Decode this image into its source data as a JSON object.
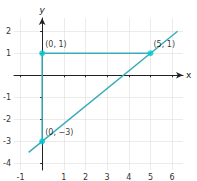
{
  "chart_data": {
    "type": "line",
    "xlabel": "x",
    "ylabel": "y",
    "xlim": [
      -1.3,
      6.5
    ],
    "ylim": [
      -4.3,
      2.6
    ],
    "xticks": [
      -1,
      {
        "value": 0,
        "label": ""
      },
      1,
      2,
      3,
      4,
      5,
      6
    ],
    "yticks": [
      -4,
      -3,
      -2,
      -1,
      {
        "value": 0,
        "label": ""
      },
      1,
      2
    ],
    "grid": true,
    "series": [
      {
        "type": "line",
        "color": "#3aacb8",
        "x": [
          -0.625,
          6.25
        ],
        "values": [
          -3.5,
          2
        ]
      },
      {
        "type": "line",
        "color": "#3aacb8",
        "x": [
          0,
          5
        ],
        "values": [
          1,
          1
        ]
      },
      {
        "type": "line",
        "color": "#3aacb8",
        "x": [
          0,
          0
        ],
        "values": [
          -3,
          1
        ]
      },
      {
        "type": "scatter",
        "marker": "circle",
        "color": "#00c8d2",
        "x": [
          0,
          5,
          0
        ],
        "values": [
          -3,
          1,
          1
        ]
      }
    ],
    "annotations": [
      {
        "text": "(0, 1)",
        "x": 0,
        "y": 1
      },
      {
        "text": "(5, 1)",
        "x": 5,
        "y": 1
      },
      {
        "text": "(0, −3)",
        "x": 0,
        "y": -3
      }
    ]
  }
}
